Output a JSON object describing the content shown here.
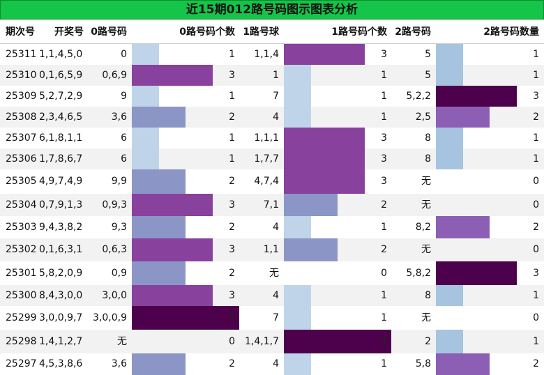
{
  "title": "近15期012路号码图示图表分析",
  "headers": [
    "期次号",
    "开奖号",
    "0路号码",
    "0路号码个数",
    "1路号球",
    "1路号码个数",
    "2路号码",
    "2路号码数量"
  ],
  "colors": {
    "title_bg": "#14c54a",
    "row_alt": "#f2f2f2",
    "count_0": "#ffffff",
    "count_1": "#bfd4e8",
    "count_2": "#8c96c6",
    "count_3": "#88419d",
    "count_4": "#4d004b",
    "route2_count_1": "#a6c4e0",
    "route2_count_2": "#8c5fb5"
  },
  "chart_data": {
    "type": "table",
    "columns": [
      "期次号",
      "开奖号",
      "0路号码",
      "0路号码个数",
      "1路号球",
      "1路号码个数",
      "2路号码",
      "2路号码数量"
    ],
    "rows": [
      {
        "period": "25311",
        "draw": "1,1,4,5,0",
        "r0": "0",
        "c0": 1,
        "r1": "1,1,4",
        "c1": 3,
        "r2": "5",
        "c2": 1
      },
      {
        "period": "25310",
        "draw": "0,1,6,5,9",
        "r0": "0,6,9",
        "c0": 3,
        "r1": "1",
        "c1": 1,
        "r2": "5",
        "c2": 1
      },
      {
        "period": "25309",
        "draw": "5,2,7,2,9",
        "r0": "9",
        "c0": 1,
        "r1": "7",
        "c1": 1,
        "r2": "5,2,2",
        "c2": 3
      },
      {
        "period": "25308",
        "draw": "2,3,4,6,5",
        "r0": "3,6",
        "c0": 2,
        "r1": "4",
        "c1": 1,
        "r2": "2,5",
        "c2": 2
      },
      {
        "period": "25307",
        "draw": "6,1,8,1,1",
        "r0": "6",
        "c0": 1,
        "r1": "1,1,1",
        "c1": 3,
        "r2": "8",
        "c2": 1
      },
      {
        "period": "25306",
        "draw": "1,7,8,6,7",
        "r0": "6",
        "c0": 1,
        "r1": "1,7,7",
        "c1": 3,
        "r2": "8",
        "c2": 1
      },
      {
        "period": "25305",
        "draw": "4,9,7,4,9",
        "r0": "9,9",
        "c0": 2,
        "r1": "4,7,4",
        "c1": 3,
        "r2": "无",
        "c2": 0
      },
      {
        "period": "25304",
        "draw": "0,7,9,1,3",
        "r0": "0,9,3",
        "c0": 3,
        "r1": "7,1",
        "c1": 2,
        "r2": "无",
        "c2": 0
      },
      {
        "period": "25303",
        "draw": "9,4,3,8,2",
        "r0": "9,3",
        "c0": 2,
        "r1": "4",
        "c1": 1,
        "r2": "8,2",
        "c2": 2
      },
      {
        "period": "25302",
        "draw": "0,1,6,3,1",
        "r0": "0,6,3",
        "c0": 3,
        "r1": "1,1",
        "c1": 2,
        "r2": "无",
        "c2": 0
      },
      {
        "period": "25301",
        "draw": "5,8,2,0,9",
        "r0": "0,9",
        "c0": 2,
        "r1": "无",
        "c1": 0,
        "r2": "5,8,2",
        "c2": 3
      },
      {
        "period": "25300",
        "draw": "8,4,3,0,0",
        "r0": "3,0,0",
        "c0": 3,
        "r1": "4",
        "c1": 1,
        "r2": "8",
        "c2": 1
      },
      {
        "period": "25299",
        "draw": "3,0,0,9,7",
        "r0": "3,0,0,9",
        "c0": 4,
        "r1": "7",
        "c1": 1,
        "r2": "无",
        "c2": 0
      },
      {
        "period": "25298",
        "draw": "1,4,1,2,7",
        "r0": "无",
        "c0": 0,
        "r1": "1,4,1,7",
        "c1": 4,
        "r2": "2",
        "c2": 1
      },
      {
        "period": "25297",
        "draw": "4,5,3,8,6",
        "r0": "3,6",
        "c0": 2,
        "r1": "4",
        "c1": 1,
        "r2": "5,8",
        "c2": 2
      }
    ],
    "count_max": 4
  }
}
